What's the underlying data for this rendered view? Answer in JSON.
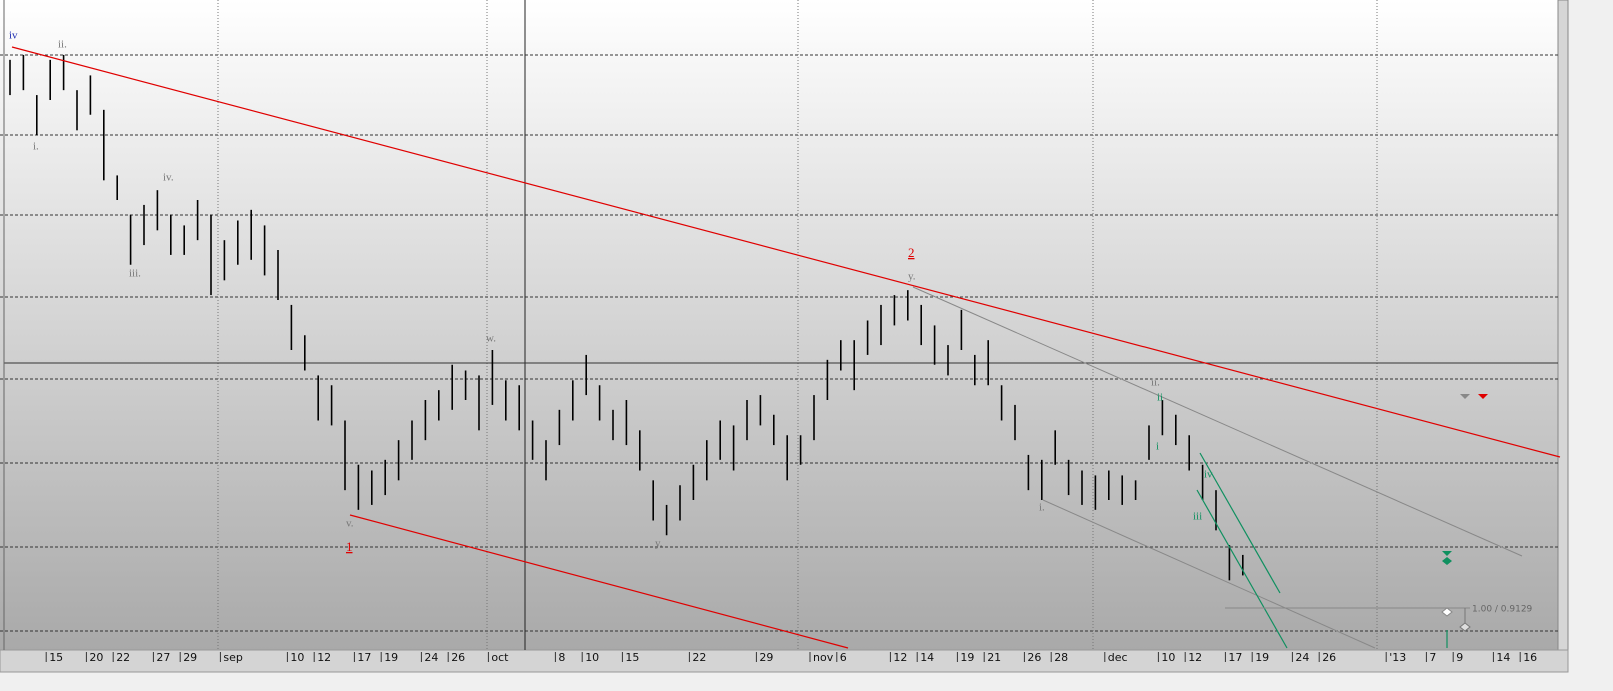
{
  "chart_data": {
    "type": "ohlc",
    "ylim": [
      0.9077,
      0.987
    ],
    "categories": [
      null,
      null,
      null,
      "15",
      null,
      null,
      "20",
      null,
      "22",
      null,
      null,
      "27",
      null,
      "29",
      null,
      null,
      "sep",
      null,
      null,
      null,
      null,
      "10",
      null,
      "12",
      null,
      null,
      "17",
      null,
      "19",
      null,
      null,
      "24",
      null,
      "26",
      null,
      null,
      "oct",
      null,
      null,
      null,
      null,
      "8",
      null,
      "10",
      null,
      null,
      "15",
      null,
      null,
      null,
      null,
      "22",
      null,
      null,
      null,
      null,
      "29",
      null,
      null,
      null,
      "nov",
      null,
      "6",
      null,
      null,
      null,
      "12",
      null,
      "14",
      null,
      null,
      "19",
      null,
      "21",
      null,
      null,
      "26",
      null,
      "28",
      null,
      null,
      null,
      "dec",
      null,
      null,
      null,
      "10",
      null,
      "12",
      null,
      null,
      "17",
      null,
      "19",
      null,
      null,
      "24",
      null,
      "26",
      null,
      null,
      null,
      null,
      "'13",
      null,
      null,
      "7",
      null,
      "9",
      null,
      null,
      "14",
      null,
      "16",
      null,
      null
    ],
    "high": [
      0.9797,
      0.9803,
      0.9754,
      0.9797,
      0.9803,
      0.976,
      0.9778,
      0.9736,
      0.9656,
      0.9608,
      0.962,
      0.9638,
      0.9608,
      0.9595,
      0.9626,
      0.9608,
      0.9577,
      0.9601,
      0.9614,
      0.9595,
      0.9565,
      0.9498,
      0.9461,
      0.9412,
      0.94,
      0.9357,
      0.9303,
      0.9296,
      0.9309,
      0.9333,
      0.9357,
      0.9382,
      0.9394,
      0.9425,
      0.9418,
      0.9412,
      0.9443,
      0.9406,
      0.94,
      0.9357,
      0.9333,
      0.937,
      0.9406,
      0.9437,
      0.94,
      0.937,
      0.9382,
      0.9345,
      0.9284,
      0.9254,
      0.9278,
      0.9303,
      0.9333,
      0.9357,
      0.9351,
      0.9382,
      0.9388,
      0.9364,
      0.9339,
      0.9339,
      0.9388,
      0.9431,
      0.9455,
      0.9455,
      0.9479,
      0.9498,
      0.951,
      0.9516,
      0.9498,
      0.9473,
      0.9449,
      0.9492,
      0.9437,
      0.9455,
      0.94,
      0.9376,
      0.9315,
      0.9309,
      0.9345,
      0.9309,
      0.9296,
      0.929,
      0.9296,
      0.929,
      0.9284,
      0.9351,
      0.9382,
      0.9364,
      0.9339,
      0.9303,
      0.9272,
      0.9205,
      0.9193,
      null,
      null,
      null,
      null,
      null,
      null,
      null,
      null,
      null,
      null,
      null,
      null,
      null,
      null,
      null,
      null,
      null,
      null,
      null,
      null,
      null,
      null,
      null
    ],
    "low": [
      0.9754,
      0.976,
      0.9705,
      0.9748,
      0.976,
      0.9711,
      0.973,
      0.965,
      0.9626,
      0.9547,
      0.9571,
      0.9589,
      0.9559,
      0.9559,
      0.9577,
      0.951,
      0.9528,
      0.9547,
      0.9553,
      0.9534,
      0.9504,
      0.9443,
      0.9418,
      0.9357,
      0.9351,
      0.9272,
      0.9248,
      0.9254,
      0.9266,
      0.9284,
      0.9309,
      0.9333,
      0.9357,
      0.937,
      0.9382,
      0.9345,
      0.9376,
      0.9357,
      0.9345,
      0.9309,
      0.9284,
      0.9327,
      0.9357,
      0.9388,
      0.9357,
      0.9333,
      0.9327,
      0.9296,
      0.9235,
      0.9217,
      0.9235,
      0.926,
      0.9284,
      0.9309,
      0.9296,
      0.9333,
      0.9351,
      0.9327,
      0.9284,
      0.9303,
      0.9333,
      0.9382,
      0.9418,
      0.9394,
      0.9437,
      0.9449,
      0.9473,
      0.9479,
      0.9449,
      0.9425,
      0.9412,
      0.9443,
      0.94,
      0.94,
      0.9357,
      0.9333,
      0.9272,
      0.926,
      0.9303,
      0.9266,
      0.9254,
      0.9248,
      0.926,
      0.9254,
      0.926,
      0.9309,
      0.9339,
      0.9327,
      0.9296,
      0.926,
      0.9223,
      0.9162,
      0.9168,
      null,
      null,
      null,
      null,
      null,
      null,
      null,
      null,
      null,
      null,
      null,
      null,
      null,
      null,
      null,
      null,
      null,
      null,
      null,
      null,
      null,
      null,
      null
    ],
    "color": "#000000",
    "annotations": [
      "iv",
      "ii.",
      "i.",
      "iv.",
      "iii.",
      "v.",
      "1",
      "w.",
      "y.",
      "2",
      "y.",
      "ii.",
      "i.",
      "ii",
      "i",
      "iv",
      "iii",
      "1.00 / 0.9129"
    ]
  }
}
